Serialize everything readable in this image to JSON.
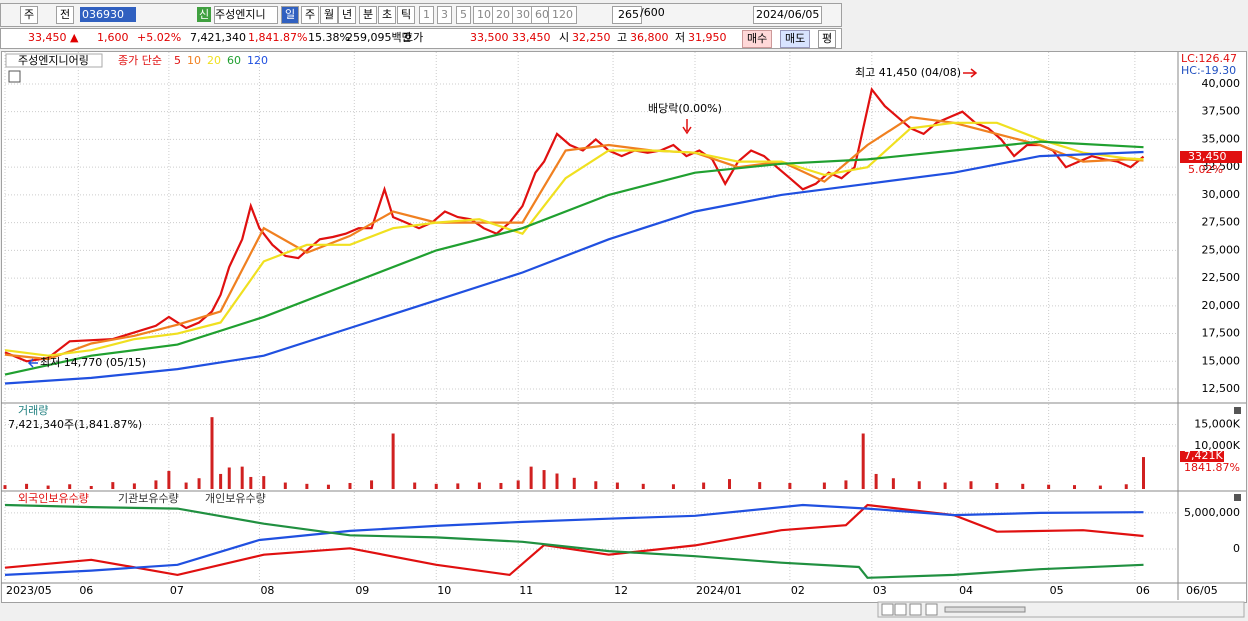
{
  "toolbar": {
    "market": "주",
    "tab": "전",
    "code": "036930",
    "badge": "신",
    "name": "주성엔지니",
    "periods": [
      "일",
      "주",
      "월",
      "년",
      "분",
      "초",
      "틱"
    ],
    "intervals": [
      "1",
      "3",
      "5",
      "10",
      "20",
      "30",
      "60",
      "120"
    ],
    "count": "265",
    "max": "/600",
    "date": "2024/06/05"
  },
  "info_bar": {
    "price": "33,450 ▲",
    "change": "1,600",
    "rate": "+5.02%",
    "volume": "7,421,340",
    "volume_rate": "1,841.87%",
    "turnover": "15.38%",
    "amount": "259,095백만",
    "quote_label": "호가",
    "ask": "33,500",
    "bid": "33,450",
    "open_label": "시",
    "open": "32,250",
    "high_label": "고",
    "high": "36,800",
    "low_label": "저",
    "low": "31,950",
    "buy": "매수",
    "sell": "매도",
    "avg": "평"
  },
  "chart_data": [
    {
      "type": "line",
      "title": "주성엔지니어링",
      "legend_label": "종가 단순",
      "lc_label": "LC:126.47",
      "hc_label": "HC:-19.30",
      "last_label": "33,450",
      "last_change": "5.02%",
      "xlim": [
        0,
        272
      ],
      "ylim": [
        11330,
        42880
      ],
      "yticks": [
        {
          "value": 12500,
          "label": "12,500"
        },
        {
          "value": 15000,
          "label": "15,000"
        },
        {
          "value": 17500,
          "label": "17,500"
        },
        {
          "value": 20000,
          "label": "20,000"
        },
        {
          "value": 22500,
          "label": "22,500"
        },
        {
          "value": 25000,
          "label": "25,000"
        },
        {
          "value": 27500,
          "label": "27,500"
        },
        {
          "value": 30000,
          "label": "30,000"
        },
        {
          "value": 32500,
          "label": "32,500"
        },
        {
          "value": 35000,
          "label": "35,000"
        },
        {
          "value": 37500,
          "label": "37,500"
        },
        {
          "value": 40000,
          "label": "40,000"
        }
      ],
      "annotations": [
        {
          "text": "최고 41,450 (04/08)"
        },
        {
          "text": "최저 14,770 (05/15)"
        },
        {
          "text": "배당락(0.00%)"
        }
      ],
      "series": [
        {
          "name": "5",
          "color": "#e01010",
          "x": [
            0,
            5,
            10,
            15,
            20,
            25,
            30,
            35,
            38,
            42,
            45,
            48,
            50,
            52,
            55,
            57,
            59,
            62,
            65,
            68,
            70,
            73,
            76,
            79,
            82,
            85,
            88,
            90,
            93,
            96,
            99,
            102,
            105,
            108,
            111,
            114,
            117,
            120,
            123,
            125,
            128,
            131,
            134,
            137,
            140,
            143,
            146,
            149,
            152,
            155,
            158,
            161,
            164,
            167,
            170,
            173,
            176,
            179,
            182,
            185,
            188,
            191,
            194,
            197,
            199,
            201,
            204,
            207,
            210,
            213,
            216,
            219,
            222,
            225,
            228,
            231,
            234,
            237,
            240,
            243,
            246,
            249,
            252,
            255,
            258,
            261,
            264
          ],
          "values": [
            15800,
            15000,
            15300,
            16800,
            16900,
            17000,
            17600,
            18200,
            19000,
            18000,
            18500,
            19500,
            21000,
            23500,
            26000,
            29000,
            27000,
            25500,
            24500,
            24300,
            25000,
            26000,
            26200,
            26500,
            27000,
            27000,
            30500,
            28000,
            27500,
            27000,
            27500,
            28500,
            28000,
            27800,
            27000,
            26500,
            27500,
            29000,
            32000,
            33000,
            35500,
            34500,
            34000,
            35000,
            34000,
            33500,
            34000,
            33800,
            34000,
            34500,
            33500,
            34000,
            33200,
            31000,
            33000,
            34000,
            33500,
            32500,
            31500,
            30500,
            31000,
            32000,
            31500,
            32500,
            36000,
            39500,
            38000,
            37000,
            36000,
            35500,
            36500,
            37000,
            37500,
            36500,
            36000,
            35000,
            33500,
            34500,
            34500,
            34000,
            32500,
            33000,
            33500,
            33200,
            33000,
            32500,
            33450
          ]
        },
        {
          "name": "10",
          "color": "#f08020",
          "x": [
            0,
            10,
            20,
            30,
            40,
            50,
            60,
            70,
            80,
            90,
            100,
            110,
            120,
            130,
            140,
            150,
            160,
            170,
            180,
            190,
            200,
            210,
            220,
            230,
            240,
            250,
            260,
            264
          ],
          "values": [
            15600,
            15200,
            16600,
            17300,
            18300,
            19500,
            27000,
            24800,
            26300,
            28500,
            27500,
            27500,
            27500,
            34000,
            34500,
            34000,
            33800,
            32500,
            33000,
            31200,
            34500,
            37000,
            36500,
            35500,
            34500,
            33000,
            33200,
            33100
          ]
        },
        {
          "name": "20",
          "color": "#f0e020",
          "x": [
            0,
            10,
            20,
            30,
            40,
            50,
            60,
            70,
            80,
            90,
            100,
            110,
            120,
            130,
            140,
            150,
            160,
            170,
            180,
            190,
            200,
            210,
            220,
            230,
            240,
            250,
            260,
            264
          ],
          "values": [
            16000,
            15500,
            16000,
            17000,
            17500,
            18500,
            24000,
            25500,
            25500,
            27000,
            27500,
            27800,
            26500,
            31500,
            34000,
            34000,
            33800,
            33000,
            33000,
            31800,
            32500,
            36000,
            36500,
            36500,
            35000,
            33800,
            33300,
            33200
          ]
        },
        {
          "name": "60",
          "color": "#20a030",
          "x": [
            0,
            20,
            40,
            60,
            80,
            100,
            120,
            140,
            160,
            180,
            200,
            220,
            240,
            264
          ],
          "values": [
            13800,
            15500,
            16500,
            19000,
            22000,
            25000,
            27000,
            30000,
            32000,
            32800,
            33200,
            34000,
            34800,
            34300
          ]
        },
        {
          "name": "120",
          "color": "#2050e0",
          "x": [
            0,
            20,
            40,
            60,
            80,
            100,
            120,
            140,
            160,
            180,
            200,
            220,
            240,
            264
          ],
          "values": [
            13000,
            13500,
            14300,
            15500,
            18000,
            20500,
            23000,
            26000,
            28500,
            30000,
            31000,
            32000,
            33500,
            33870
          ]
        }
      ]
    },
    {
      "type": "bar",
      "title": "거래량",
      "subtitle": "7,421,340주(1,841.87%)",
      "last_label": "7,421K",
      "last_change": "1841.87%",
      "xlim": [
        0,
        272
      ],
      "ylim": [
        0,
        19760
      ],
      "yticks": [
        {
          "value": 10000,
          "label": "10,000K"
        },
        {
          "value": 15000,
          "label": "15,000K"
        }
      ],
      "series": [
        {
          "color": "#d02020",
          "x": [
            0,
            5,
            10,
            15,
            20,
            25,
            30,
            35,
            38,
            42,
            45,
            48,
            50,
            52,
            55,
            57,
            60,
            65,
            70,
            75,
            80,
            85,
            90,
            95,
            100,
            105,
            110,
            115,
            119,
            122,
            125,
            128,
            132,
            137,
            142,
            148,
            155,
            162,
            168,
            175,
            182,
            190,
            195,
            199,
            202,
            206,
            212,
            218,
            224,
            230,
            236,
            242,
            248,
            254,
            260,
            264
          ],
          "values": [
            900,
            1200,
            800,
            1100,
            700,
            1600,
            1300,
            2000,
            4200,
            1500,
            2500,
            16700,
            3500,
            5000,
            5200,
            2800,
            3000,
            1500,
            1200,
            1000,
            1400,
            2000,
            12900,
            1500,
            1200,
            1300,
            1500,
            1400,
            2000,
            5200,
            4400,
            3600,
            2600,
            1800,
            1500,
            1200,
            1100,
            1500,
            2300,
            1600,
            1400,
            1500,
            2000,
            12900,
            3500,
            2500,
            1800,
            1500,
            1800,
            1400,
            1200,
            1000,
            900,
            800,
            1100,
            7421
          ]
        }
      ]
    },
    {
      "type": "line",
      "xlim": [
        0,
        272
      ],
      "ylim": [
        -4580000,
        7900000
      ],
      "yticks": [
        0,
        {
          "value": 5000000,
          "label": "5,000,000"
        }
      ],
      "xticks": [
        {
          "value": 0,
          "label": "2023/05"
        },
        {
          "value": 17,
          "label": "06"
        },
        {
          "value": 38,
          "label": "07"
        },
        {
          "value": 59,
          "label": "08"
        },
        {
          "value": 81,
          "label": "09"
        },
        {
          "value": 100,
          "label": "10"
        },
        {
          "value": 119,
          "label": "11"
        },
        {
          "value": 141,
          "label": "12"
        },
        {
          "value": 160,
          "label": "2024/01"
        },
        {
          "value": 182,
          "label": "02"
        },
        {
          "value": 201,
          "label": "03"
        },
        {
          "value": 221,
          "label": "04"
        },
        {
          "value": 242,
          "label": "05"
        },
        {
          "value": 262,
          "label": "06"
        }
      ],
      "x_end_label": "06/05",
      "series": [
        {
          "name": "외국인보유수량",
          "color": "#e01010",
          "x": [
            0,
            20,
            40,
            60,
            80,
            100,
            117,
            125,
            140,
            160,
            180,
            195,
            200,
            220,
            230,
            250,
            264
          ],
          "values": [
            -2600000,
            -1500000,
            -3600000,
            -800000,
            100000,
            -2200000,
            -3600000,
            550000,
            -800000,
            500000,
            2600000,
            3300000,
            6100000,
            4700000,
            2400000,
            2600000,
            1800000
          ]
        },
        {
          "name": "기관보유수량",
          "color": "#2050e0",
          "x": [
            0,
            20,
            40,
            59,
            80,
            100,
            120,
            140,
            160,
            185,
            200,
            220,
            240,
            264
          ],
          "values": [
            -3600000,
            -3000000,
            -2200000,
            1250000,
            2500000,
            3200000,
            3750000,
            4200000,
            4600000,
            6100000,
            5600000,
            4700000,
            5000000,
            5100000
          ]
        },
        {
          "name": "개인보유수량",
          "color": "#209040",
          "x": [
            0,
            20,
            40,
            60,
            80,
            100,
            120,
            140,
            160,
            180,
            198,
            200,
            220,
            240,
            264
          ],
          "values": [
            6100000,
            5800000,
            5600000,
            3500000,
            1900000,
            1600000,
            1000000,
            -300000,
            -1000000,
            -1900000,
            -2500000,
            -4000000,
            -3600000,
            -2800000,
            -2200000
          ]
        }
      ]
    }
  ]
}
